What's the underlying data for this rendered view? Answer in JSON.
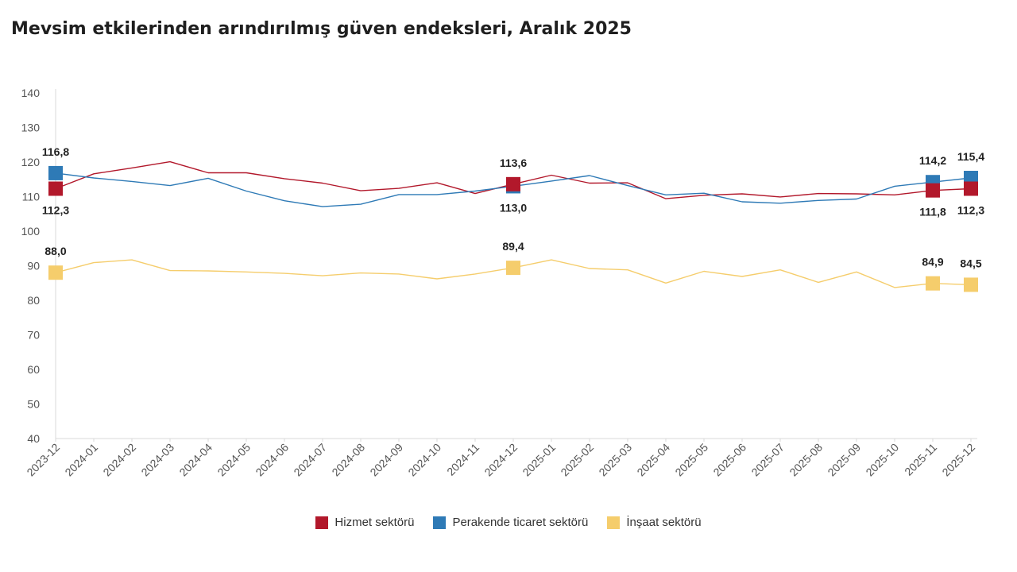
{
  "chart_data": {
    "type": "line",
    "title": "Mevsim etkilerinden arındırılmış güven endeksleri, Aralık 2025",
    "xlabel": "",
    "ylabel": "",
    "ylim": [
      40,
      140
    ],
    "yticks": [
      "40",
      "50",
      "60",
      "70",
      "80",
      "90",
      "100",
      "110",
      "120",
      "130",
      "140"
    ],
    "categories": [
      "2023-12",
      "2024-01",
      "2024-02",
      "2024-03",
      "2024-04",
      "2024-05",
      "2024-06",
      "2024-07",
      "2024-08",
      "2024-09",
      "2024-10",
      "2024-11",
      "2024-12",
      "2025-01",
      "2025-02",
      "2025-03",
      "2025-04",
      "2025-05",
      "2025-06",
      "2025-07",
      "2025-08",
      "2025-09",
      "2025-10",
      "2025-11",
      "2025-12"
    ],
    "series": [
      {
        "name": "Hizmet sektörü",
        "color": "#b2182b",
        "values": [
          112.3,
          116.6,
          118.3,
          120.1,
          116.9,
          116.9,
          115.2,
          113.9,
          111.7,
          112.4,
          114.0,
          110.9,
          113.6,
          116.2,
          113.9,
          114.0,
          109.4,
          110.4,
          110.8,
          109.9,
          110.9,
          110.8,
          110.5,
          111.8,
          112.3
        ],
        "labels": {
          "0": "112,3",
          "12": "113,6",
          "23": "111,8",
          "24": "112,3"
        },
        "label_pos": {
          "0": "below",
          "12": "above",
          "23": "below",
          "24": "below"
        }
      },
      {
        "name": "Perakende ticaret sektörü",
        "color": "#2e7ab6",
        "values": [
          116.8,
          115.4,
          114.4,
          113.2,
          115.3,
          111.6,
          108.8,
          107.1,
          107.8,
          110.6,
          110.6,
          111.6,
          113.0,
          114.5,
          116.1,
          113.2,
          110.5,
          111.0,
          108.5,
          108.1,
          108.9,
          109.3,
          113.0,
          114.2,
          115.4
        ],
        "labels": {
          "0": "116,8",
          "12": "113,0",
          "23": "114,2",
          "24": "115,4"
        },
        "label_pos": {
          "0": "above",
          "12": "below",
          "23": "above",
          "24": "above"
        }
      },
      {
        "name": "İnşaat sektörü",
        "color": "#f5cd6c",
        "values": [
          88.0,
          90.9,
          91.7,
          88.6,
          88.5,
          88.2,
          87.8,
          87.1,
          87.9,
          87.6,
          86.2,
          87.6,
          89.4,
          91.7,
          89.2,
          88.8,
          85.0,
          88.4,
          86.9,
          88.8,
          85.2,
          88.2,
          83.7,
          84.9,
          84.5
        ],
        "labels": {
          "0": "88,0",
          "12": "89,4",
          "23": "84,9",
          "24": "84,5"
        },
        "label_pos": {
          "0": "above",
          "12": "above",
          "23": "above",
          "24": "above"
        }
      }
    ],
    "legend": "bottom",
    "grid": false
  }
}
